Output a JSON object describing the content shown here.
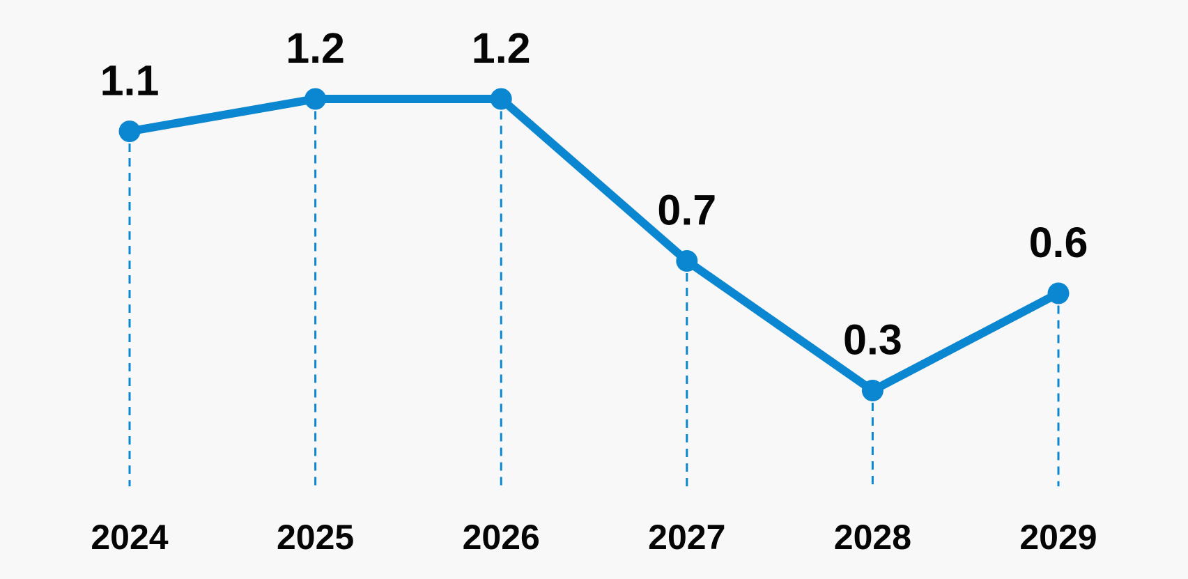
{
  "chart_data": {
    "type": "line",
    "categories": [
      "2024",
      "2025",
      "2026",
      "2027",
      "2028",
      "2029"
    ],
    "values": [
      1.1,
      1.2,
      1.2,
      0.7,
      0.3,
      0.6
    ],
    "value_labels": [
      "1.1",
      "1.2",
      "1.2",
      "0.7",
      "0.3",
      "0.6"
    ],
    "series_name": "",
    "title": "",
    "xlabel": "",
    "ylabel": "",
    "ylim": [
      0,
      1.4
    ],
    "grid": "none",
    "drop_lines": "dashed vertical line from each point down to x-axis label zone",
    "legend_position": "none",
    "colors": {
      "line": "#0b86d0",
      "point": "#0b86d0",
      "drop_line": "#0b86d0",
      "value_label": "#050505",
      "axis_label": "#050505",
      "background": "#f8f8f8"
    }
  }
}
